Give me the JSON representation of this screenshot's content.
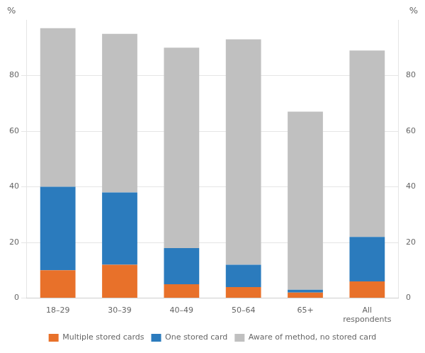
{
  "chart_data": {
    "type": "bar",
    "stacked": true,
    "categories": [
      "18–29",
      "30–39",
      "40–49",
      "50–64",
      "65+",
      "All\nrespondents"
    ],
    "series": [
      {
        "name": "Multiple stored cards",
        "color": "#E8712A",
        "values": [
          10,
          12,
          5,
          4,
          2,
          6
        ]
      },
      {
        "name": "One stored card",
        "color": "#2B7BBD",
        "values": [
          30,
          26,
          13,
          8,
          1,
          16
        ]
      },
      {
        "name": "Aware of method, no stored card",
        "color": "#C0C0C0",
        "values": [
          57,
          57,
          72,
          81,
          64,
          67
        ]
      }
    ],
    "ylabel": "%",
    "y2label": "%",
    "ylim": [
      0,
      100
    ],
    "yticks": [
      0,
      20,
      40,
      60,
      80
    ],
    "y2lim": [
      0,
      100
    ],
    "y2ticks": [
      0,
      20,
      40,
      60,
      80
    ],
    "grid": true,
    "legend": "bottom"
  }
}
